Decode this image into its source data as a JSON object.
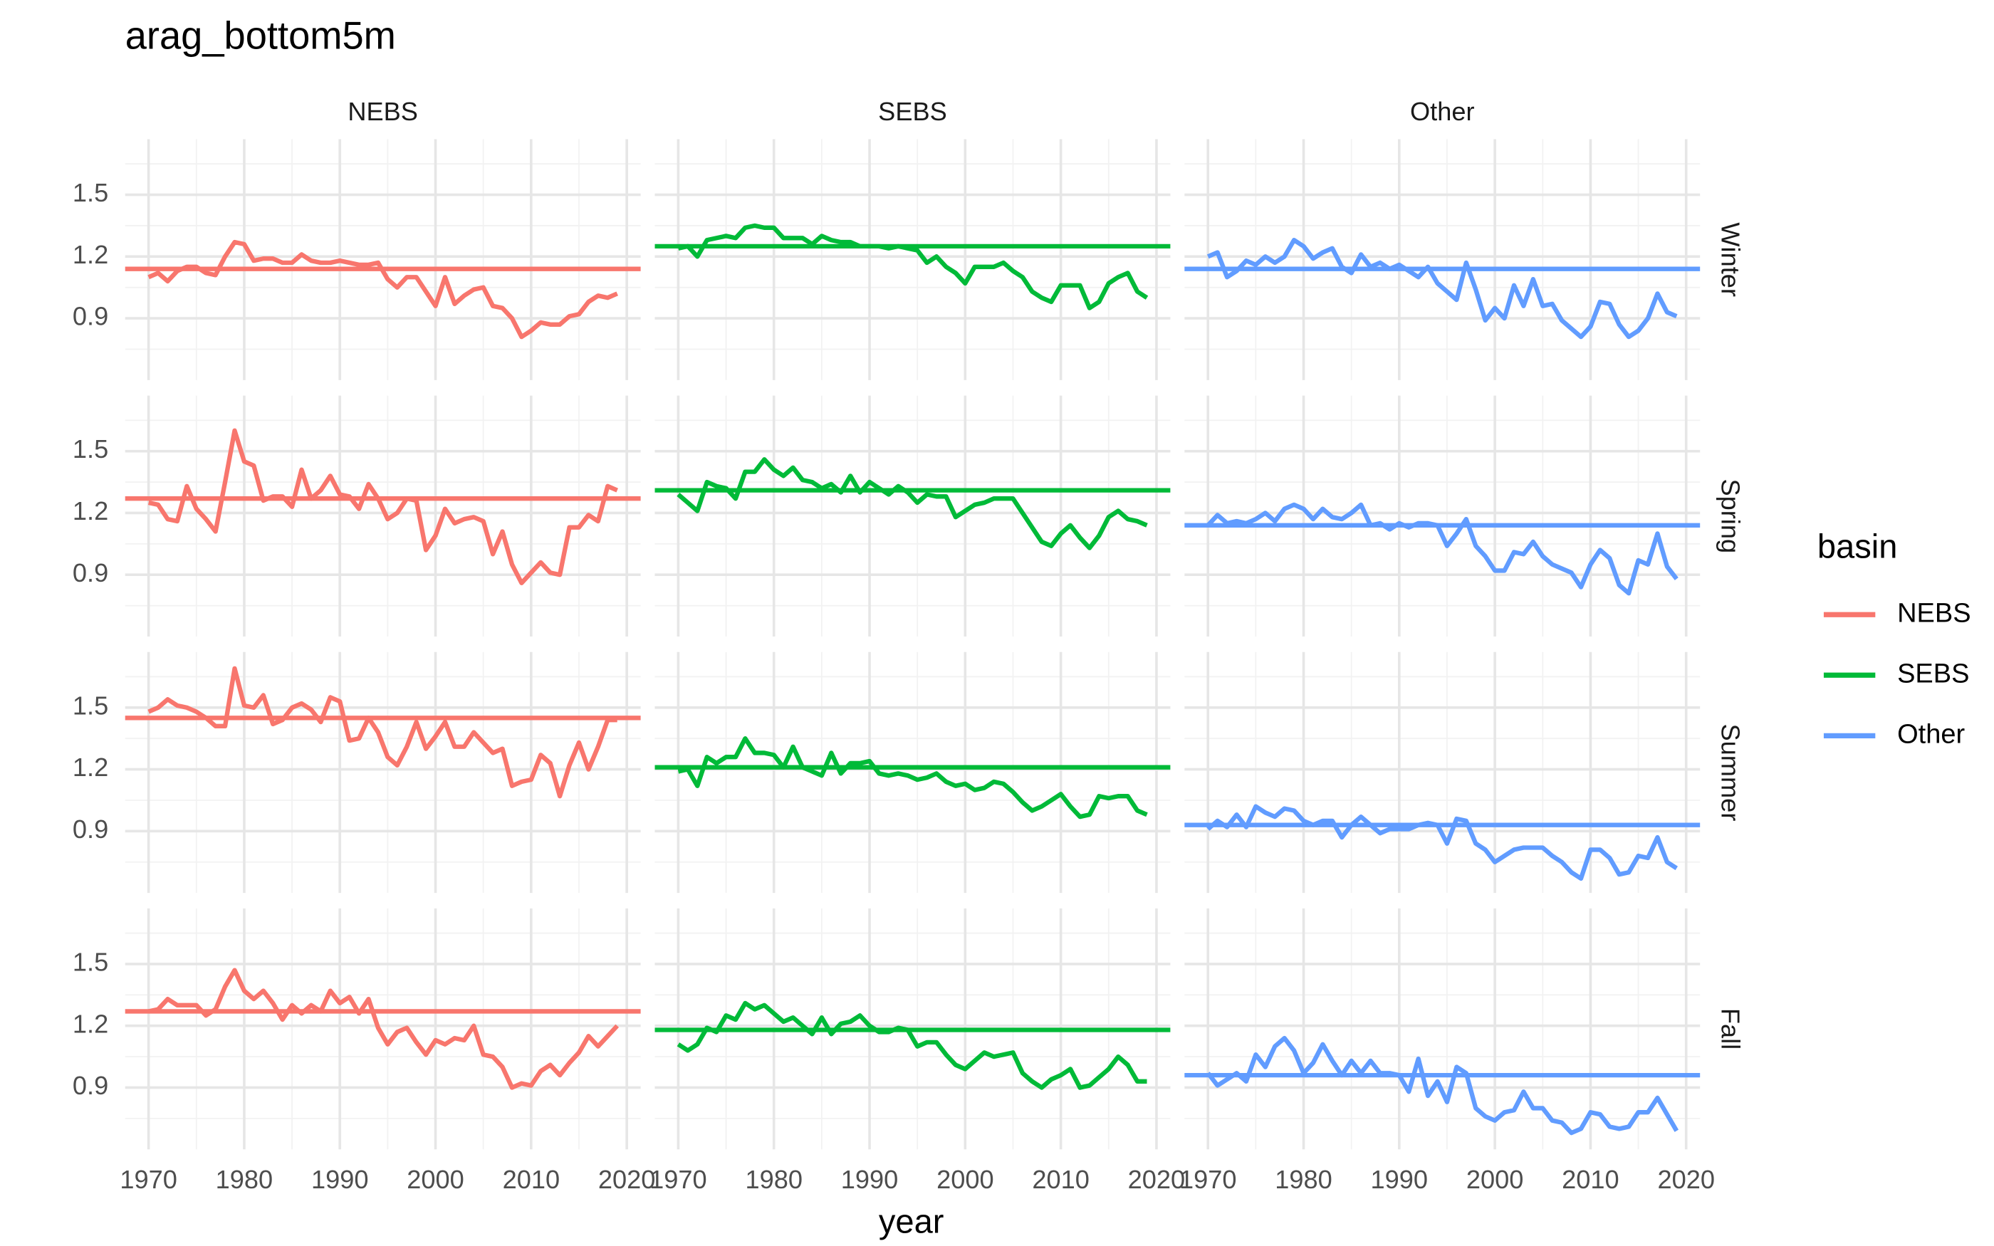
{
  "chart_data": {
    "type": "line",
    "title": "arag_bottom5m",
    "x_label": "year",
    "legend_title": "basin",
    "legend_position": "right",
    "grid": true,
    "facets": [
      "Winter",
      "Spring",
      "Summer",
      "Fall"
    ],
    "x": [
      1970,
      1971,
      1972,
      1973,
      1974,
      1975,
      1976,
      1977,
      1978,
      1979,
      1980,
      1981,
      1982,
      1983,
      1984,
      1985,
      1986,
      1987,
      1988,
      1989,
      1990,
      1991,
      1992,
      1993,
      1994,
      1995,
      1996,
      1997,
      1998,
      1999,
      2000,
      2001,
      2002,
      2003,
      2004,
      2005,
      2006,
      2007,
      2008,
      2009,
      2010,
      2011,
      2012,
      2013,
      2014,
      2015,
      2016,
      2017,
      2018,
      2019
    ],
    "xlim": [
      1967.55,
      2021.45
    ],
    "xticks": [
      1970,
      1980,
      1990,
      2000,
      2010,
      2020
    ],
    "ylim": [
      0.6,
      1.77
    ],
    "yticks": [
      0.9,
      1.2,
      1.5
    ],
    "series": [
      {
        "name": "NEBS",
        "color": "#F8766D",
        "panels": [
          {
            "mean": 1.14,
            "values": [
              1.1,
              1.12,
              1.08,
              1.13,
              1.15,
              1.15,
              1.12,
              1.11,
              1.2,
              1.27,
              1.26,
              1.18,
              1.19,
              1.19,
              1.17,
              1.17,
              1.21,
              1.18,
              1.17,
              1.17,
              1.18,
              1.17,
              1.16,
              1.16,
              1.17,
              1.09,
              1.05,
              1.1,
              1.1,
              1.03,
              0.96,
              1.1,
              0.97,
              1.01,
              1.04,
              1.05,
              0.96,
              0.95,
              0.9,
              0.81,
              0.84,
              0.88,
              0.87,
              0.87,
              0.91,
              0.92,
              0.98,
              1.01,
              1.0,
              1.02
            ]
          },
          {
            "mean": 1.27,
            "values": [
              1.25,
              1.24,
              1.17,
              1.16,
              1.33,
              1.22,
              1.17,
              1.11,
              1.35,
              1.6,
              1.45,
              1.43,
              1.26,
              1.28,
              1.28,
              1.23,
              1.41,
              1.27,
              1.31,
              1.38,
              1.29,
              1.28,
              1.22,
              1.34,
              1.27,
              1.17,
              1.2,
              1.27,
              1.26,
              1.02,
              1.09,
              1.22,
              1.15,
              1.17,
              1.18,
              1.16,
              1.0,
              1.11,
              0.95,
              0.86,
              0.91,
              0.96,
              0.91,
              0.9,
              1.13,
              1.13,
              1.19,
              1.16,
              1.33,
              1.31
            ]
          },
          {
            "mean": 1.45,
            "values": [
              1.48,
              1.5,
              1.54,
              1.51,
              1.5,
              1.48,
              1.45,
              1.41,
              1.41,
              1.69,
              1.51,
              1.5,
              1.56,
              1.42,
              1.44,
              1.5,
              1.52,
              1.49,
              1.43,
              1.55,
              1.53,
              1.34,
              1.35,
              1.45,
              1.38,
              1.26,
              1.22,
              1.31,
              1.43,
              1.3,
              1.36,
              1.43,
              1.31,
              1.31,
              1.38,
              1.33,
              1.28,
              1.3,
              1.12,
              1.14,
              1.15,
              1.27,
              1.23,
              1.07,
              1.22,
              1.33,
              1.2,
              1.31,
              1.44,
              1.44
            ]
          },
          {
            "mean": 1.27,
            "values": [
              1.27,
              1.28,
              1.33,
              1.3,
              1.3,
              1.3,
              1.25,
              1.28,
              1.39,
              1.47,
              1.37,
              1.33,
              1.37,
              1.31,
              1.23,
              1.3,
              1.26,
              1.3,
              1.27,
              1.37,
              1.31,
              1.34,
              1.26,
              1.33,
              1.19,
              1.11,
              1.17,
              1.19,
              1.12,
              1.06,
              1.13,
              1.11,
              1.14,
              1.13,
              1.2,
              1.06,
              1.05,
              1.0,
              0.9,
              0.92,
              0.91,
              0.98,
              1.01,
              0.96,
              1.02,
              1.07,
              1.15,
              1.1,
              1.15,
              1.2
            ]
          }
        ]
      },
      {
        "name": "SEBS",
        "color": "#00BA38",
        "panels": [
          {
            "mean": 1.25,
            "values": [
              1.24,
              1.25,
              1.2,
              1.28,
              1.29,
              1.3,
              1.29,
              1.34,
              1.35,
              1.34,
              1.34,
              1.29,
              1.29,
              1.29,
              1.26,
              1.3,
              1.28,
              1.27,
              1.27,
              1.25,
              1.25,
              1.25,
              1.24,
              1.25,
              1.24,
              1.23,
              1.17,
              1.2,
              1.15,
              1.12,
              1.07,
              1.15,
              1.15,
              1.15,
              1.17,
              1.13,
              1.1,
              1.03,
              1.0,
              0.98,
              1.06,
              1.06,
              1.06,
              0.95,
              0.98,
              1.07,
              1.1,
              1.12,
              1.03,
              1.0
            ]
          },
          {
            "mean": 1.31,
            "values": [
              1.29,
              1.25,
              1.21,
              1.35,
              1.33,
              1.32,
              1.27,
              1.4,
              1.4,
              1.46,
              1.41,
              1.38,
              1.42,
              1.36,
              1.35,
              1.32,
              1.34,
              1.3,
              1.38,
              1.3,
              1.35,
              1.32,
              1.29,
              1.33,
              1.3,
              1.25,
              1.29,
              1.28,
              1.28,
              1.18,
              1.21,
              1.24,
              1.25,
              1.27,
              1.27,
              1.27,
              1.2,
              1.13,
              1.06,
              1.04,
              1.1,
              1.14,
              1.08,
              1.03,
              1.09,
              1.18,
              1.21,
              1.17,
              1.16,
              1.14
            ]
          },
          {
            "mean": 1.21,
            "values": [
              1.19,
              1.2,
              1.12,
              1.26,
              1.23,
              1.26,
              1.26,
              1.35,
              1.28,
              1.28,
              1.27,
              1.21,
              1.31,
              1.21,
              1.19,
              1.17,
              1.28,
              1.18,
              1.23,
              1.23,
              1.24,
              1.18,
              1.17,
              1.18,
              1.17,
              1.15,
              1.16,
              1.18,
              1.14,
              1.12,
              1.13,
              1.1,
              1.11,
              1.14,
              1.13,
              1.09,
              1.04,
              1.0,
              1.02,
              1.05,
              1.08,
              1.02,
              0.97,
              0.98,
              1.07,
              1.06,
              1.07,
              1.07,
              1.0,
              0.98
            ]
          },
          {
            "mean": 1.18,
            "values": [
              1.11,
              1.08,
              1.11,
              1.19,
              1.17,
              1.25,
              1.23,
              1.31,
              1.28,
              1.3,
              1.26,
              1.22,
              1.24,
              1.2,
              1.16,
              1.24,
              1.16,
              1.21,
              1.22,
              1.25,
              1.2,
              1.17,
              1.17,
              1.19,
              1.18,
              1.1,
              1.12,
              1.12,
              1.06,
              1.01,
              0.99,
              1.03,
              1.07,
              1.05,
              1.06,
              1.07,
              0.97,
              0.93,
              0.9,
              0.94,
              0.96,
              0.99,
              0.9,
              0.91,
              0.95,
              0.99,
              1.05,
              1.01,
              0.93,
              0.93
            ]
          }
        ]
      },
      {
        "name": "Other",
        "color": "#619CFF",
        "panels": [
          {
            "mean": 1.14,
            "values": [
              1.2,
              1.22,
              1.1,
              1.13,
              1.18,
              1.16,
              1.2,
              1.17,
              1.2,
              1.28,
              1.25,
              1.19,
              1.22,
              1.24,
              1.15,
              1.12,
              1.21,
              1.15,
              1.17,
              1.14,
              1.16,
              1.13,
              1.1,
              1.15,
              1.07,
              1.03,
              0.99,
              1.17,
              1.04,
              0.89,
              0.95,
              0.9,
              1.06,
              0.96,
              1.09,
              0.96,
              0.97,
              0.89,
              0.85,
              0.81,
              0.86,
              0.98,
              0.97,
              0.87,
              0.81,
              0.84,
              0.9,
              1.02,
              0.93,
              0.91
            ]
          },
          {
            "mean": 1.14,
            "values": [
              1.14,
              1.19,
              1.15,
              1.16,
              1.15,
              1.17,
              1.2,
              1.16,
              1.22,
              1.24,
              1.22,
              1.17,
              1.22,
              1.18,
              1.17,
              1.2,
              1.24,
              1.14,
              1.15,
              1.12,
              1.15,
              1.13,
              1.15,
              1.15,
              1.14,
              1.04,
              1.1,
              1.17,
              1.04,
              0.99,
              0.92,
              0.92,
              1.01,
              1.0,
              1.06,
              0.99,
              0.95,
              0.93,
              0.91,
              0.84,
              0.95,
              1.02,
              0.98,
              0.85,
              0.81,
              0.97,
              0.95,
              1.1,
              0.94,
              0.88
            ]
          },
          {
            "mean": 0.93,
            "values": [
              0.91,
              0.95,
              0.92,
              0.98,
              0.92,
              1.02,
              0.99,
              0.97,
              1.01,
              1.0,
              0.95,
              0.93,
              0.95,
              0.95,
              0.87,
              0.93,
              0.97,
              0.93,
              0.89,
              0.91,
              0.91,
              0.91,
              0.93,
              0.94,
              0.93,
              0.84,
              0.96,
              0.95,
              0.84,
              0.81,
              0.75,
              0.78,
              0.81,
              0.82,
              0.82,
              0.82,
              0.78,
              0.75,
              0.7,
              0.67,
              0.81,
              0.81,
              0.77,
              0.69,
              0.7,
              0.78,
              0.77,
              0.87,
              0.75,
              0.72
            ]
          },
          {
            "mean": 0.96,
            "values": [
              0.97,
              0.91,
              0.94,
              0.97,
              0.93,
              1.06,
              1.0,
              1.1,
              1.14,
              1.08,
              0.97,
              1.02,
              1.11,
              1.03,
              0.96,
              1.03,
              0.97,
              1.03,
              0.97,
              0.97,
              0.96,
              0.88,
              1.04,
              0.86,
              0.93,
              0.83,
              1.0,
              0.97,
              0.8,
              0.76,
              0.74,
              0.78,
              0.79,
              0.88,
              0.8,
              0.8,
              0.74,
              0.73,
              0.68,
              0.7,
              0.78,
              0.77,
              0.71,
              0.7,
              0.71,
              0.78,
              0.78,
              0.85,
              0.77,
              0.69
            ]
          }
        ]
      }
    ]
  }
}
